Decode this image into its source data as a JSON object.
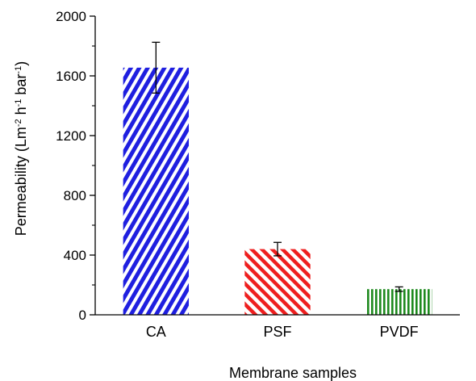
{
  "chart_data": {
    "type": "bar",
    "categories": [
      "CA",
      "PSF",
      "PVDF"
    ],
    "values": [
      1655,
      440,
      172
    ],
    "errors": [
      170,
      45,
      15
    ],
    "xlabel": "Membrane samples",
    "ylabel": {
      "main": "Permeability",
      "unit_parts": [
        {
          "text": "  (Lm",
          "sup": false
        },
        {
          "text": "-2",
          "sup": true
        },
        {
          "text": " h",
          "sup": false
        },
        {
          "text": "-1",
          "sup": true
        },
        {
          "text": " bar",
          "sup": false
        },
        {
          "text": "-1",
          "sup": true
        },
        {
          "text": ")",
          "sup": false
        }
      ]
    },
    "ylim": [
      0,
      2000
    ],
    "yticks": [
      0,
      400,
      800,
      1200,
      1600,
      2000
    ],
    "minor_ticks": true,
    "grid": false,
    "legend": "none",
    "bar_styles": [
      {
        "color": "#1f1fe0",
        "pattern": "diagonal-up"
      },
      {
        "color": "#ee1f1f",
        "pattern": "diagonal-down"
      },
      {
        "color": "#1e8a1e",
        "pattern": "vertical"
      }
    ]
  }
}
